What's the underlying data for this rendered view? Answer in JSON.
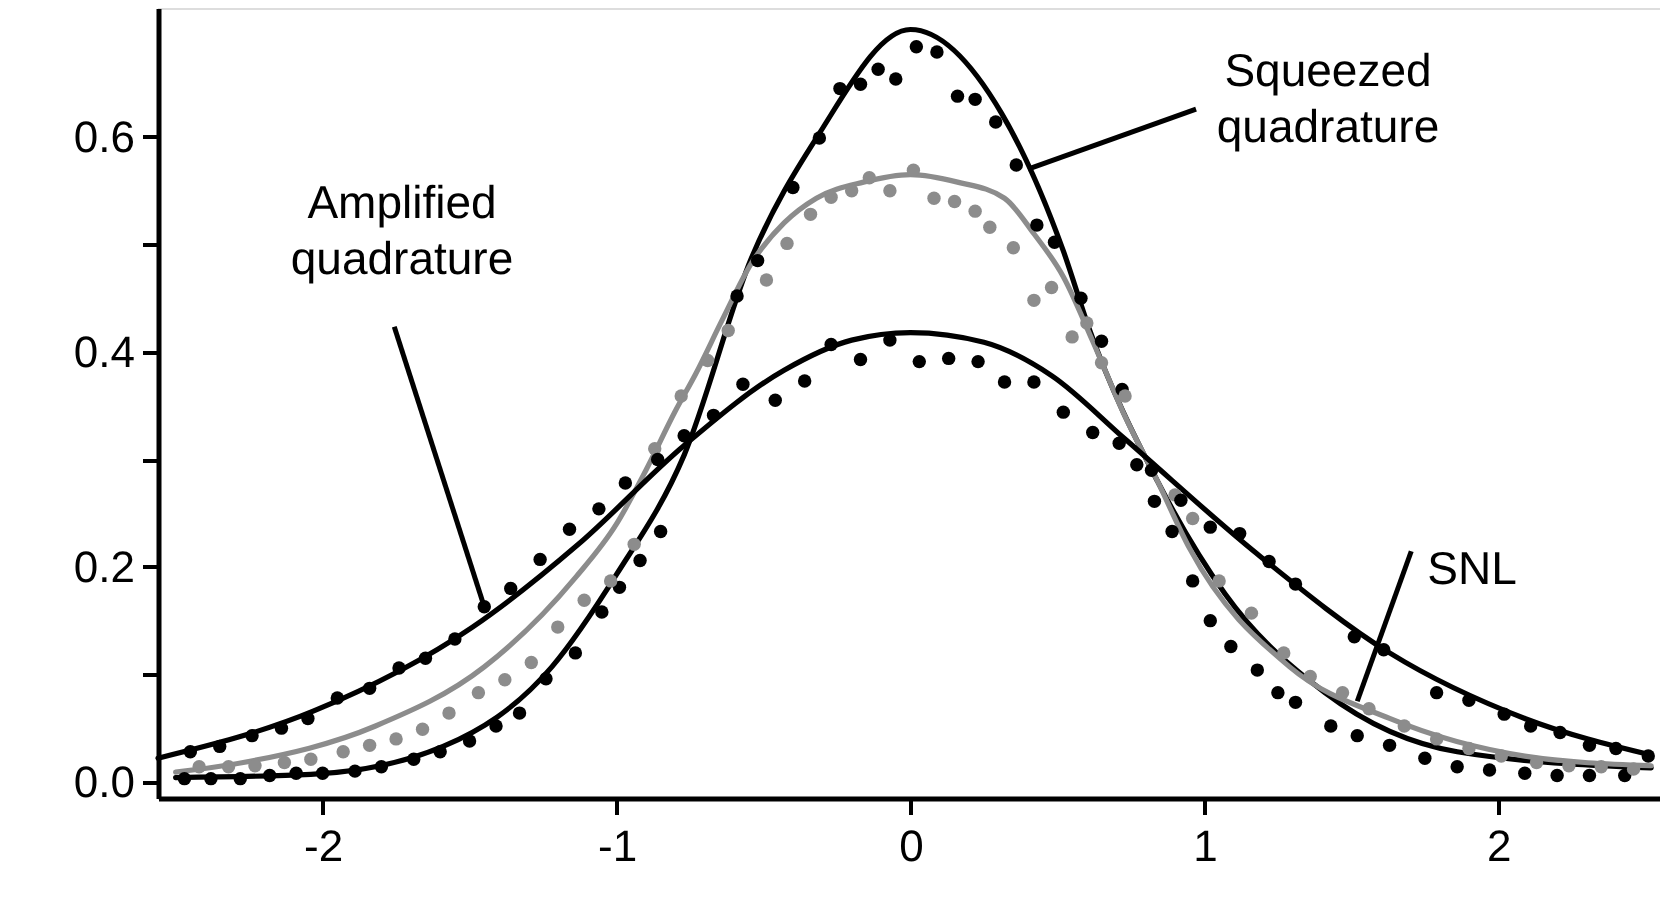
{
  "chart_data": {
    "type": "line",
    "xlim": [
      -2.56,
      2.55
    ],
    "ylim": [
      -0.015,
      0.72
    ],
    "xticks": [
      -2,
      -1,
      0,
      1,
      2
    ],
    "yticks": [
      {
        "value": 0,
        "label": "0.0"
      },
      {
        "value": 0.1,
        "label": null
      },
      {
        "value": 0.2,
        "label": "0.2"
      },
      {
        "value": 0.3,
        "label": null
      },
      {
        "value": 0.4,
        "label": "0.4"
      },
      {
        "value": 0.5,
        "label": null
      },
      {
        "value": 0.6,
        "label": "0.6"
      }
    ],
    "grid": false,
    "line_style": "solid",
    "series": [
      {
        "color": "#000000",
        "x": [
          -2.5,
          -2.04,
          -1.59,
          -1.22,
          -1.0,
          -0.77,
          -0.54,
          -0.32,
          0.0,
          0.31,
          0.52,
          0.61,
          0.84,
          1.07,
          1.41,
          1.86,
          2.52
        ],
        "values": [
          0.004,
          0.007,
          0.033,
          0.107,
          0.193,
          0.304,
          0.488,
          0.599,
          0.7,
          0.622,
          0.494,
          0.42,
          0.28,
          0.175,
          0.083,
          0.028,
          0.013
        ]
      },
      {
        "color": "#8c8c8c",
        "x": [
          -2.5,
          -2.27,
          -1.82,
          -1.45,
          -1.14,
          -1.0,
          -0.9,
          -0.8,
          -0.73,
          -0.64,
          -0.54,
          -0.43,
          -0.32,
          -0.16,
          0.0,
          0.16,
          0.32,
          0.42,
          0.52,
          0.62,
          0.73,
          0.84,
          0.95,
          1.29,
          1.63,
          2.09,
          2.52
        ],
        "values": [
          0.009,
          0.018,
          0.052,
          0.107,
          0.19,
          0.24,
          0.29,
          0.345,
          0.38,
          0.43,
          0.483,
          0.52,
          0.543,
          0.558,
          0.565,
          0.558,
          0.543,
          0.51,
          0.47,
          0.41,
          0.34,
          0.28,
          0.217,
          0.107,
          0.059,
          0.024,
          0.015
        ]
      },
      {
        "color": "#000000",
        "x": [
          -2.56,
          -2.03,
          -1.49,
          -1.13,
          -0.77,
          -0.43,
          -0.2,
          0.0,
          0.25,
          0.48,
          0.73,
          1.18,
          1.63,
          2.09,
          2.52
        ],
        "values": [
          0.022,
          0.066,
          0.144,
          0.221,
          0.313,
          0.383,
          0.411,
          0.418,
          0.409,
          0.378,
          0.319,
          0.212,
          0.12,
          0.059,
          0.025
        ]
      },
      {
        "type": "scatter",
        "marker": "circle",
        "color": "#000000",
        "x": [
          -2.47,
          -2.38,
          -2.28,
          -2.18,
          -2.09,
          -2.0,
          -1.89,
          -1.8,
          -1.69,
          -1.6,
          -1.5,
          -1.41,
          -1.33,
          -1.24,
          -1.14,
          -1.05,
          -0.99,
          -0.92,
          -0.85,
          -0.67,
          -0.59,
          -0.52,
          -0.4,
          -0.31,
          -0.24,
          -0.17,
          -0.11,
          -0.05,
          0.02,
          0.09,
          0.16,
          0.22,
          0.29,
          0.36,
          0.43,
          0.49,
          0.58,
          0.65,
          0.72,
          0.77,
          0.83,
          0.89,
          0.96,
          1.02,
          1.09,
          1.18,
          1.25,
          1.31,
          1.43,
          1.52,
          1.63,
          1.75,
          1.86,
          1.97,
          2.09,
          2.2,
          2.31,
          2.43
        ],
        "values": [
          0.003,
          0.003,
          0.003,
          0.006,
          0.008,
          0.008,
          0.01,
          0.014,
          0.021,
          0.028,
          0.038,
          0.052,
          0.064,
          0.096,
          0.12,
          0.158,
          0.181,
          0.206,
          0.233,
          0.341,
          0.452,
          0.485,
          0.553,
          0.599,
          0.645,
          0.649,
          0.663,
          0.654,
          0.684,
          0.679,
          0.638,
          0.635,
          0.614,
          0.574,
          0.518,
          0.502,
          0.45,
          0.41,
          0.365,
          0.295,
          0.261,
          0.233,
          0.187,
          0.15,
          0.126,
          0.104,
          0.083,
          0.074,
          0.052,
          0.043,
          0.034,
          0.022,
          0.014,
          0.011,
          0.008,
          0.006,
          0.006,
          0.006
        ]
      },
      {
        "type": "scatter",
        "marker": "circle",
        "color": "#8c8c8c",
        "x": [
          -2.42,
          -2.32,
          -2.23,
          -2.13,
          -2.04,
          -1.93,
          -1.84,
          -1.75,
          -1.66,
          -1.57,
          -1.47,
          -1.38,
          -1.29,
          -1.2,
          -1.11,
          -1.02,
          -0.94,
          -0.87,
          -0.78,
          -0.69,
          -0.62,
          -0.49,
          -0.42,
          -0.34,
          -0.27,
          -0.2,
          -0.14,
          -0.07,
          0.01,
          0.08,
          0.15,
          0.22,
          0.27,
          0.35,
          0.42,
          0.48,
          0.55,
          0.6,
          0.65,
          0.73,
          0.9,
          0.96,
          1.05,
          1.16,
          1.27,
          1.36,
          1.47,
          1.56,
          1.68,
          1.79,
          1.9,
          2.01,
          2.13,
          2.24,
          2.35,
          2.46
        ],
        "values": [
          0.014,
          0.014,
          0.015,
          0.018,
          0.021,
          0.028,
          0.034,
          0.04,
          0.049,
          0.064,
          0.083,
          0.095,
          0.111,
          0.144,
          0.169,
          0.187,
          0.221,
          0.31,
          0.359,
          0.392,
          0.42,
          0.467,
          0.501,
          0.528,
          0.544,
          0.55,
          0.562,
          0.55,
          0.569,
          0.543,
          0.54,
          0.531,
          0.516,
          0.497,
          0.448,
          0.46,
          0.414,
          0.427,
          0.39,
          0.359,
          0.267,
          0.245,
          0.187,
          0.157,
          0.12,
          0.098,
          0.083,
          0.068,
          0.052,
          0.04,
          0.031,
          0.024,
          0.018,
          0.015,
          0.014,
          0.012
        ]
      },
      {
        "type": "scatter",
        "marker": "circle",
        "color": "#000000",
        "x": [
          -2.45,
          -2.35,
          -2.24,
          -2.14,
          -2.05,
          -1.95,
          -1.84,
          -1.74,
          -1.65,
          -1.55,
          -1.45,
          -1.36,
          -1.26,
          -1.16,
          -1.06,
          -0.97,
          -0.86,
          -0.77,
          -0.57,
          -0.46,
          -0.36,
          -0.27,
          -0.17,
          -0.07,
          0.03,
          0.13,
          0.23,
          0.32,
          0.42,
          0.52,
          0.62,
          0.71,
          0.82,
          0.92,
          1.02,
          1.12,
          1.22,
          1.31,
          1.51,
          1.61,
          1.79,
          1.9,
          2.02,
          2.11,
          2.21,
          2.31,
          2.4,
          2.51
        ],
        "values": [
          0.028,
          0.033,
          0.043,
          0.05,
          0.059,
          0.078,
          0.087,
          0.106,
          0.115,
          0.133,
          0.163,
          0.18,
          0.207,
          0.235,
          0.254,
          0.278,
          0.3,
          0.322,
          0.37,
          0.355,
          0.373,
          0.407,
          0.393,
          0.411,
          0.391,
          0.394,
          0.391,
          0.372,
          0.372,
          0.344,
          0.325,
          0.315,
          0.29,
          0.262,
          0.237,
          0.231,
          0.205,
          0.184,
          0.135,
          0.123,
          0.083,
          0.076,
          0.063,
          0.052,
          0.046,
          0.034,
          0.031,
          0.024
        ]
      }
    ],
    "annotations": [
      {
        "text": "Squeezed quadrature",
        "x": 0.4,
        "y": 0.57
      },
      {
        "text": "Amplified quadrature",
        "x": -1.45,
        "y": 0.163
      },
      {
        "text": "SNL",
        "x": 1.52,
        "y": 0.075
      }
    ]
  }
}
